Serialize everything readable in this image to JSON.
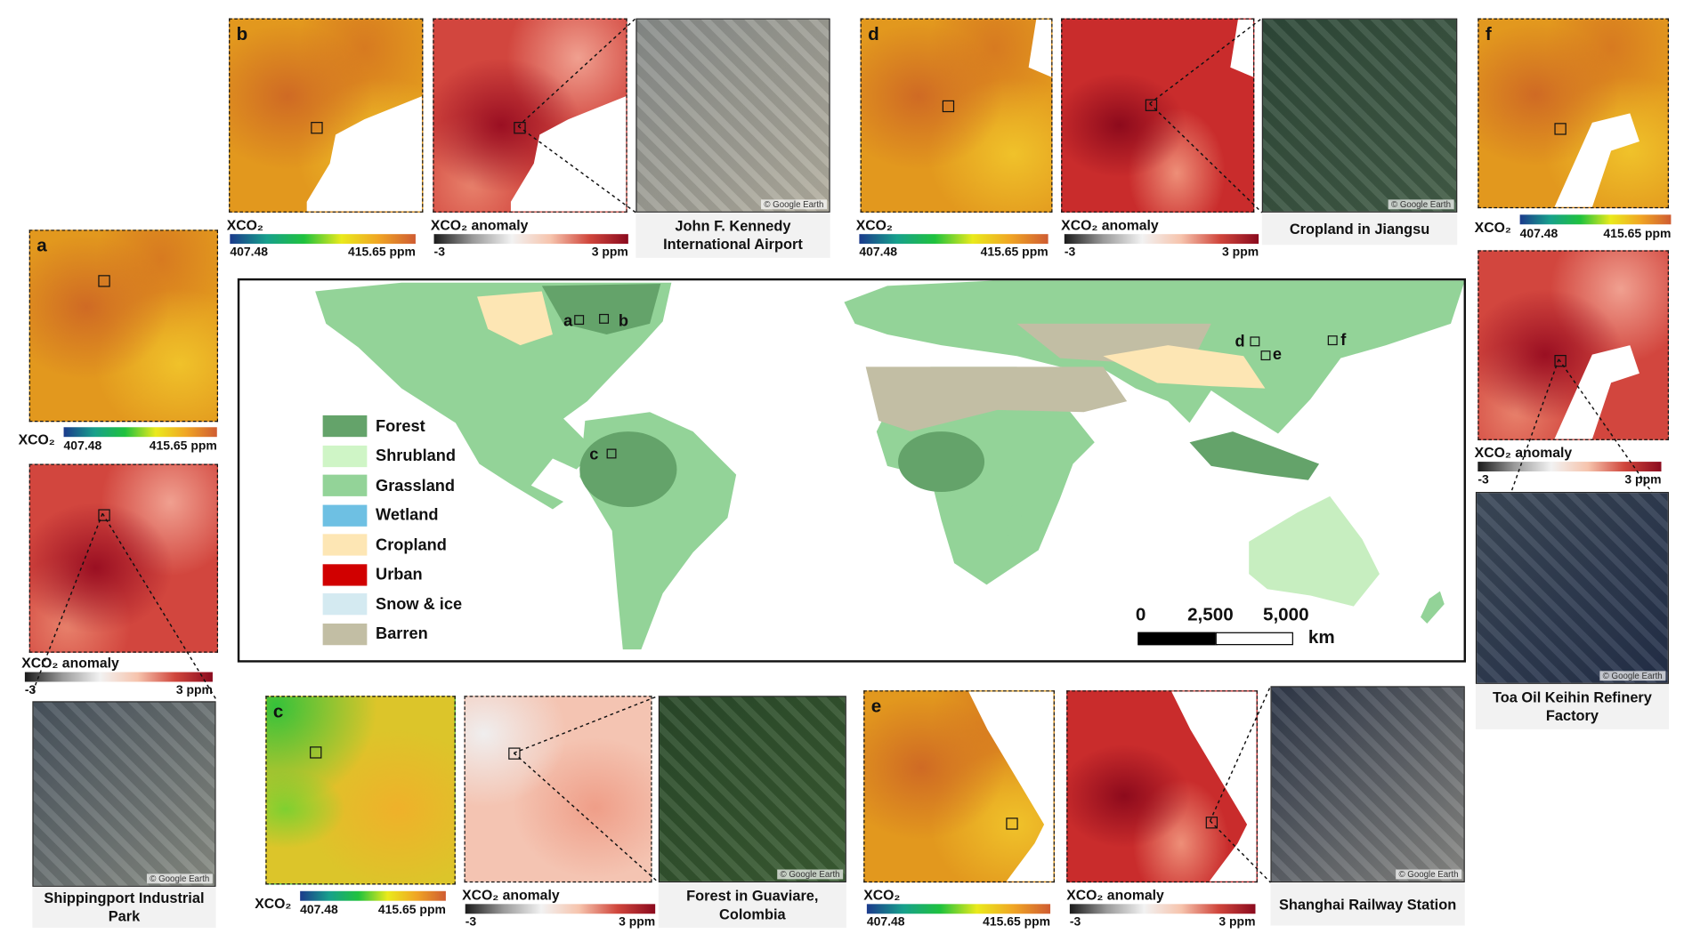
{
  "colorbar": {
    "xco2_label": "XCO₂",
    "anomaly_label": "XCO₂ anomaly",
    "xco2_min": "407.48",
    "xco2_max": "415.65 ppm",
    "anomaly_min": "-3",
    "anomaly_max": "3 ppm",
    "xco2_colors": [
      "#1b3a8c",
      "#17a08c",
      "#1fc23e",
      "#eaea1c",
      "#f0a524",
      "#cf5c32"
    ],
    "anomaly_colors": [
      "#1a1a1a",
      "#9a9a9a",
      "#f2f2f2",
      "#f6c4ad",
      "#d0463c",
      "#8b0a1e"
    ]
  },
  "watermark": "© Google Earth",
  "sites": [
    {
      "id": "a",
      "letter": "a",
      "caption": "Shippingport Industrial Park"
    },
    {
      "id": "b",
      "letter": "b",
      "caption": "John F. Kennedy International Airport"
    },
    {
      "id": "c",
      "letter": "c",
      "caption": "Forest in Guaviare, Colombia"
    },
    {
      "id": "d",
      "letter": "d",
      "caption": "Cropland in Jiangsu"
    },
    {
      "id": "e",
      "letter": "e",
      "caption": "Shanghai Railway Station"
    },
    {
      "id": "f",
      "letter": "f",
      "caption": "Toa Oil Keihin Refinery Factory"
    }
  ],
  "legend": [
    {
      "label": "Forest",
      "color": "#64a36a"
    },
    {
      "label": "Shrubland",
      "color": "#cff5c6"
    },
    {
      "label": "Grassland",
      "color": "#93d398"
    },
    {
      "label": "Wetland",
      "color": "#6ec0e3"
    },
    {
      "label": "Cropland",
      "color": "#fde6b4"
    },
    {
      "label": "Urban",
      "color": "#d10000"
    },
    {
      "label": "Snow & ice",
      "color": "#d4eaf1"
    },
    {
      "label": "Barren",
      "color": "#c2bea4"
    }
  ],
  "scale_bar": {
    "ticks": [
      "0",
      "2,500",
      "5,000"
    ],
    "unit": "km"
  }
}
